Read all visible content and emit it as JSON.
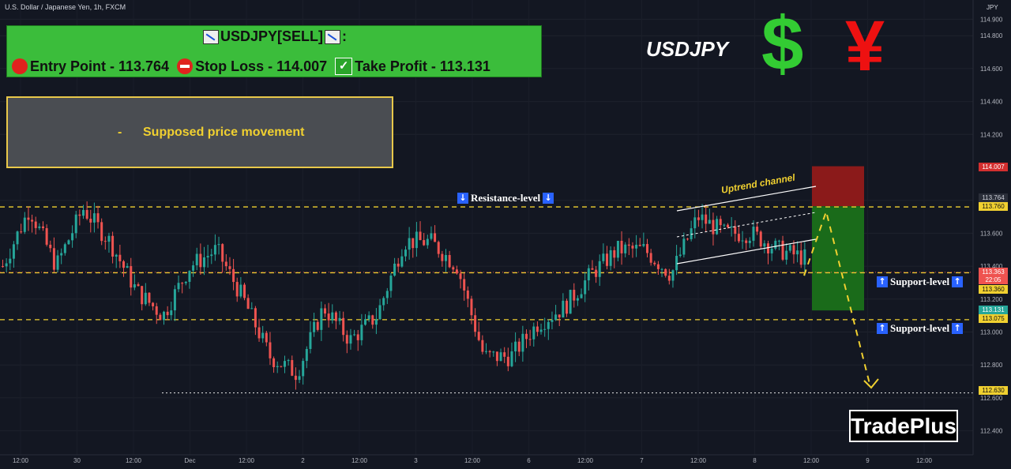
{
  "header": {
    "symbol_title": "U.S. Dollar / Japanese Yen, 1h, FXCM",
    "currency": "JPY"
  },
  "signal": {
    "title": "USDJPY[SELL]",
    "title_suffix": ":",
    "entry": "Entry Point - 113.764",
    "stop": "Stop Loss - 114.007",
    "take": "Take Profit - 113.131"
  },
  "legend": {
    "text": "Supposed price movement",
    "dash": "-"
  },
  "pair_label": "USDJPY",
  "currency_glyphs": {
    "dollar": "$",
    "yen": "¥"
  },
  "brand": "TradePlus",
  "levels": {
    "resistance": "Resistance-level",
    "support1": "Support-level",
    "support2": "Support-level",
    "channel": "Uptrend channel"
  },
  "price_tags": {
    "stop": "114.007",
    "entry": "113.764",
    "resistance": "113.760",
    "current": "113.363",
    "countdown": "22:05",
    "support1": "113.360",
    "take": "113.131",
    "support2": "113.075",
    "low": "112.630"
  },
  "colors": {
    "background": "#131722",
    "up": "#26a69a",
    "down": "#ef5350",
    "level_line": "#f0d030",
    "stop_zone": "#8b1a1a",
    "profit_zone": "#1a6b1a"
  },
  "chart_data": {
    "type": "candlestick",
    "title": "U.S. Dollar / Japanese Yen, 1h, FXCM",
    "y_ticks": [
      114.9,
      114.8,
      114.6,
      114.4,
      114.2,
      113.8,
      113.6,
      113.4,
      113.2,
      113.0,
      112.8,
      112.6,
      112.4
    ],
    "x_ticks": [
      "12:00",
      "30",
      "12:00",
      "Dec",
      "12:00",
      "2",
      "12:00",
      "3",
      "12:00",
      "6",
      "12:00",
      "7",
      "12:00",
      "8",
      "12:00",
      "9",
      "12:00"
    ],
    "ylim": [
      112.28,
      114.93
    ],
    "path_points": [
      [
        113.4,
        113.4
      ],
      [
        113.75,
        113.9
      ],
      [
        113.4,
        113.6
      ],
      [
        113.75,
        113.8
      ],
      [
        113.55,
        113.3
      ],
      [
        113.25,
        113.0
      ],
      [
        113.1,
        113.05
      ],
      [
        113.4,
        113.55
      ],
      [
        113.5,
        113.45
      ],
      [
        113.2,
        113.15
      ],
      [
        112.85,
        112.9
      ],
      [
        112.75,
        112.95
      ],
      [
        113.15,
        113.05
      ],
      [
        112.95,
        112.6
      ],
      [
        113.1,
        113.35
      ],
      [
        113.55,
        113.45
      ],
      [
        113.55,
        113.5
      ],
      [
        113.4,
        113.35
      ],
      [
        112.85,
        112.75
      ],
      [
        112.85,
        112.9
      ],
      [
        113.05,
        113.05
      ],
      [
        113.15,
        113.25
      ],
      [
        113.35,
        113.45
      ],
      [
        113.5,
        113.55
      ],
      [
        113.5,
        113.4
      ],
      [
        113.35,
        113.4
      ],
      [
        113.7,
        113.65
      ],
      [
        113.6,
        113.7
      ],
      [
        113.6,
        113.55
      ],
      [
        113.5,
        113.5
      ],
      [
        113.45,
        113.35
      ]
    ],
    "candle_count": 220,
    "support_levels": [
      113.36,
      113.075
    ],
    "resistance_level": 113.76,
    "low_level": 112.63,
    "stop_loss": 114.007,
    "entry": 113.764,
    "take_profit": 113.131,
    "last_price": 113.363
  }
}
